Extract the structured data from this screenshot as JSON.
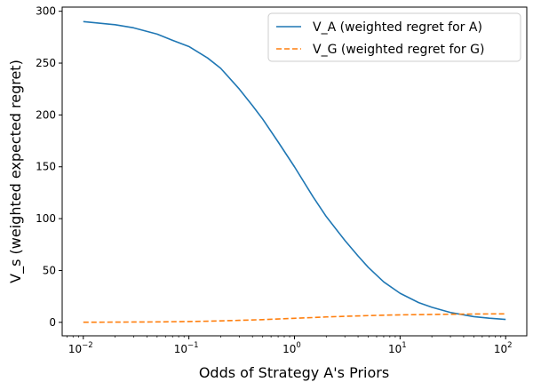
{
  "chart_data": {
    "type": "line",
    "xscale": "log",
    "xlabel": "Odds of Strategy A's Priors",
    "ylabel": "V_s (weighted expected regret)",
    "xlim_exp": [
      -2.2,
      2.2
    ],
    "ylim": [
      -13,
      304
    ],
    "x_ticks": [
      {
        "exp": -2,
        "base": "10",
        "power": "−2"
      },
      {
        "exp": -1,
        "base": "10",
        "power": "−1"
      },
      {
        "exp": 0,
        "base": "10",
        "power": "0"
      },
      {
        "exp": 1,
        "base": "10",
        "power": "1"
      },
      {
        "exp": 2,
        "base": "10",
        "power": "2"
      }
    ],
    "y_ticks": [
      {
        "value": 0,
        "label": "0"
      },
      {
        "value": 50,
        "label": "50"
      },
      {
        "value": 100,
        "label": "100"
      },
      {
        "value": 150,
        "label": "150"
      },
      {
        "value": 200,
        "label": "200"
      },
      {
        "value": 250,
        "label": "250"
      },
      {
        "value": 300,
        "label": "300"
      }
    ],
    "series": [
      {
        "name": "V_A (weighted regret for A)",
        "color": "#1f77b4",
        "dash": "solid",
        "x": [
          0.01,
          0.02,
          0.03,
          0.05,
          0.07,
          0.1,
          0.15,
          0.2,
          0.3,
          0.4,
          0.5,
          0.7,
          1,
          1.5,
          2,
          3,
          4,
          5,
          7,
          10,
          15,
          20,
          30,
          50,
          70,
          100
        ],
        "y": [
          290,
          287,
          284,
          278,
          272,
          266,
          255,
          245,
          225,
          209,
          196,
          174,
          150,
          121,
          102,
          79,
          64,
          53,
          39,
          28,
          19,
          14.5,
          9.5,
          5.5,
          4,
          2.8
        ]
      },
      {
        "name": "V_G (weighted regret for G)",
        "color": "#ff7f0e",
        "dash": "dashed",
        "x": [
          0.01,
          0.02,
          0.03,
          0.05,
          0.07,
          0.1,
          0.15,
          0.2,
          0.3,
          0.5,
          0.7,
          1,
          1.5,
          2,
          3,
          5,
          7,
          10,
          20,
          30,
          50,
          70,
          100
        ],
        "y": [
          0.1,
          0.2,
          0.3,
          0.4,
          0.6,
          0.8,
          1.1,
          1.4,
          1.9,
          2.6,
          3.2,
          3.9,
          4.6,
          5.2,
          5.8,
          6.5,
          6.9,
          7.2,
          7.6,
          7.8,
          8.0,
          8.1,
          8.2
        ]
      }
    ],
    "legend_position": "top-right"
  }
}
